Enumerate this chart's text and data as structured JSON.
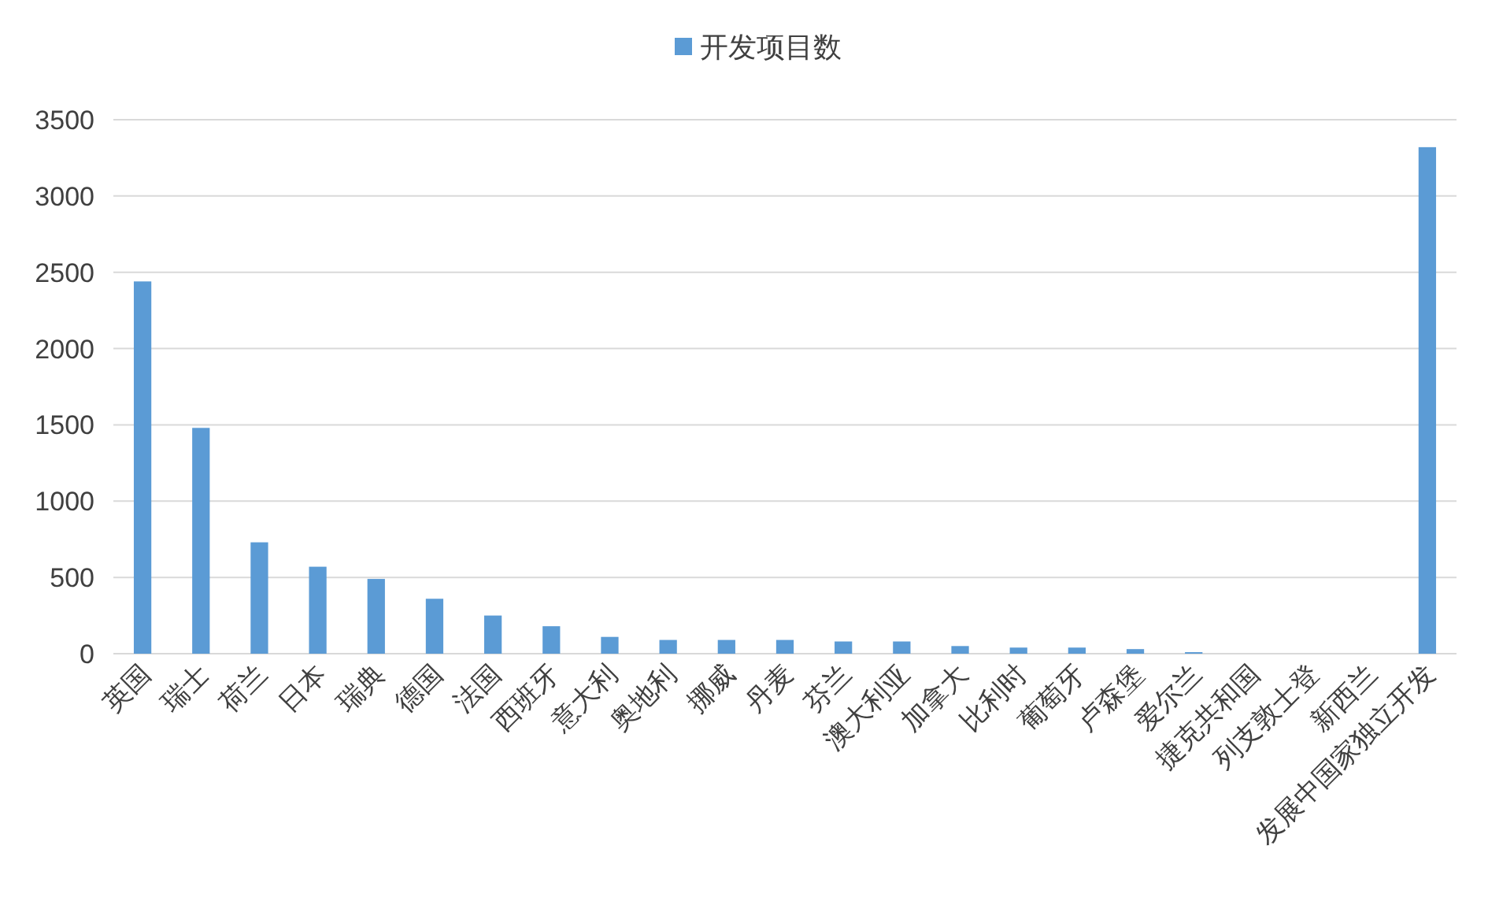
{
  "chart_data": {
    "type": "bar",
    "categories": [
      "英国",
      "瑞士",
      "荷兰",
      "日本",
      "瑞典",
      "德国",
      "法国",
      "西班牙",
      "意大利",
      "奥地利",
      "挪威",
      "丹麦",
      "芬兰",
      "澳大利亚",
      "加拿大",
      "比利时",
      "葡萄牙",
      "卢森堡",
      "爱尔兰",
      "捷克共和国",
      "列支敦士登",
      "新西兰",
      "发展中国家独立开发"
    ],
    "series": [
      {
        "name": "开发项目数",
        "color": "#5b9bd5",
        "values": [
          2440,
          1480,
          730,
          570,
          490,
          360,
          250,
          180,
          110,
          90,
          90,
          90,
          80,
          80,
          50,
          40,
          40,
          30,
          10,
          0,
          0,
          0,
          3320
        ]
      }
    ],
    "ylim": [
      0,
      3500
    ],
    "yticks": [
      0,
      500,
      1000,
      1500,
      2000,
      2500,
      3000,
      3500
    ],
    "grid": "y",
    "legend": "top"
  }
}
